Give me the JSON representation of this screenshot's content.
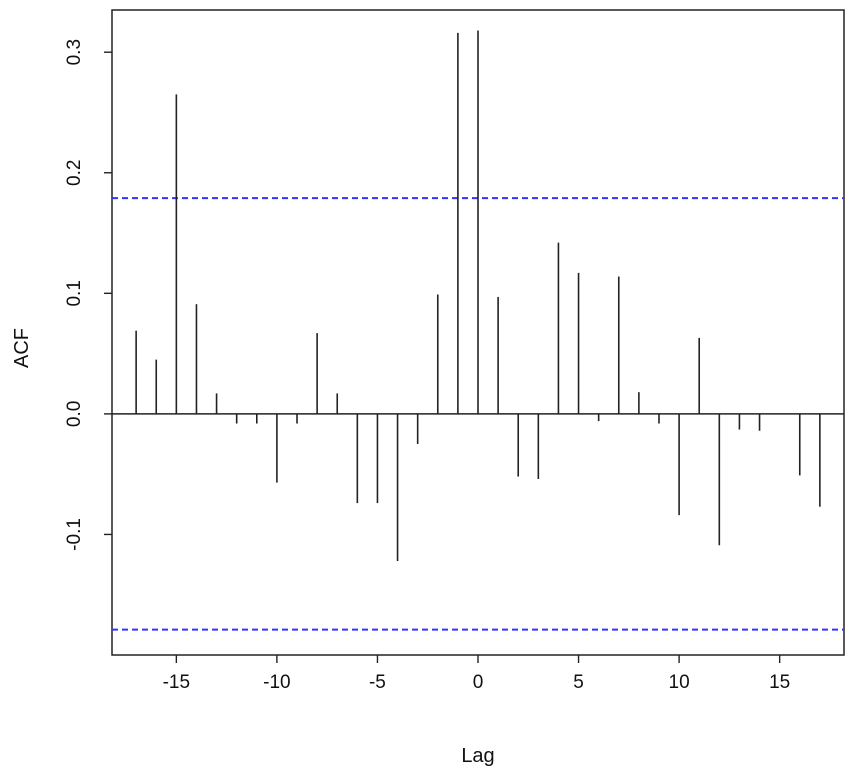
{
  "chart_data": {
    "type": "bar",
    "title": "",
    "xlabel": "Lag",
    "ylabel": "ACF",
    "xlim": [
      -18.2,
      18.2
    ],
    "ylim": [
      -0.2,
      0.335
    ],
    "xticks": [
      -15,
      -10,
      -5,
      0,
      5,
      10,
      15
    ],
    "xtick_labels": [
      "-15",
      "-10",
      "-5",
      "0",
      "5",
      "10",
      "15"
    ],
    "yticks": [
      -0.1,
      0.0,
      0.1,
      0.2,
      0.3
    ],
    "ytick_labels": [
      "-0.1",
      "0.0",
      "0.1",
      "0.2",
      "0.3"
    ],
    "confidence_bounds": [
      0.179,
      -0.179
    ],
    "confidence_color": "#3333ff",
    "bar_color": "#222222",
    "grid": false,
    "x": [
      -17,
      -16,
      -15,
      -14,
      -13,
      -12,
      -11,
      -10,
      -9,
      -8,
      -7,
      -6,
      -5,
      -4,
      -3,
      -2,
      -1,
      0,
      1,
      2,
      3,
      4,
      5,
      6,
      7,
      8,
      9,
      10,
      11,
      12,
      13,
      14,
      15,
      16,
      17
    ],
    "values": [
      0.069,
      0.045,
      0.265,
      0.091,
      0.017,
      -0.008,
      -0.008,
      -0.057,
      -0.008,
      0.067,
      0.017,
      -0.074,
      -0.074,
      -0.122,
      -0.025,
      0.099,
      0.316,
      0.318,
      0.097,
      -0.052,
      -0.054,
      0.142,
      0.117,
      -0.006,
      0.114,
      0.018,
      -0.008,
      -0.084,
      0.063,
      -0.109,
      -0.013,
      -0.014,
      0.0,
      -0.051,
      -0.077
    ]
  }
}
